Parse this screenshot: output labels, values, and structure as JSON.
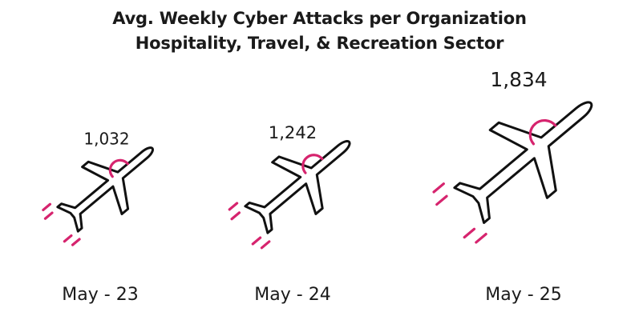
{
  "chart_data": {
    "type": "pictogram",
    "title": "Avg. Weekly Cyber Attacks per Organization",
    "subtitle": "Hospitality, Travel, & Recreation Sector",
    "categories": [
      "May - 23",
      "May - 24",
      "May - 25"
    ],
    "values": [
      1032,
      1242,
      1834
    ],
    "value_labels": [
      "1,032",
      "1,242",
      "1,834"
    ],
    "icon": "airplane-icon",
    "colors": {
      "outline": "#111111",
      "accent": "#d6246e",
      "text": "#1a1a1a"
    }
  }
}
